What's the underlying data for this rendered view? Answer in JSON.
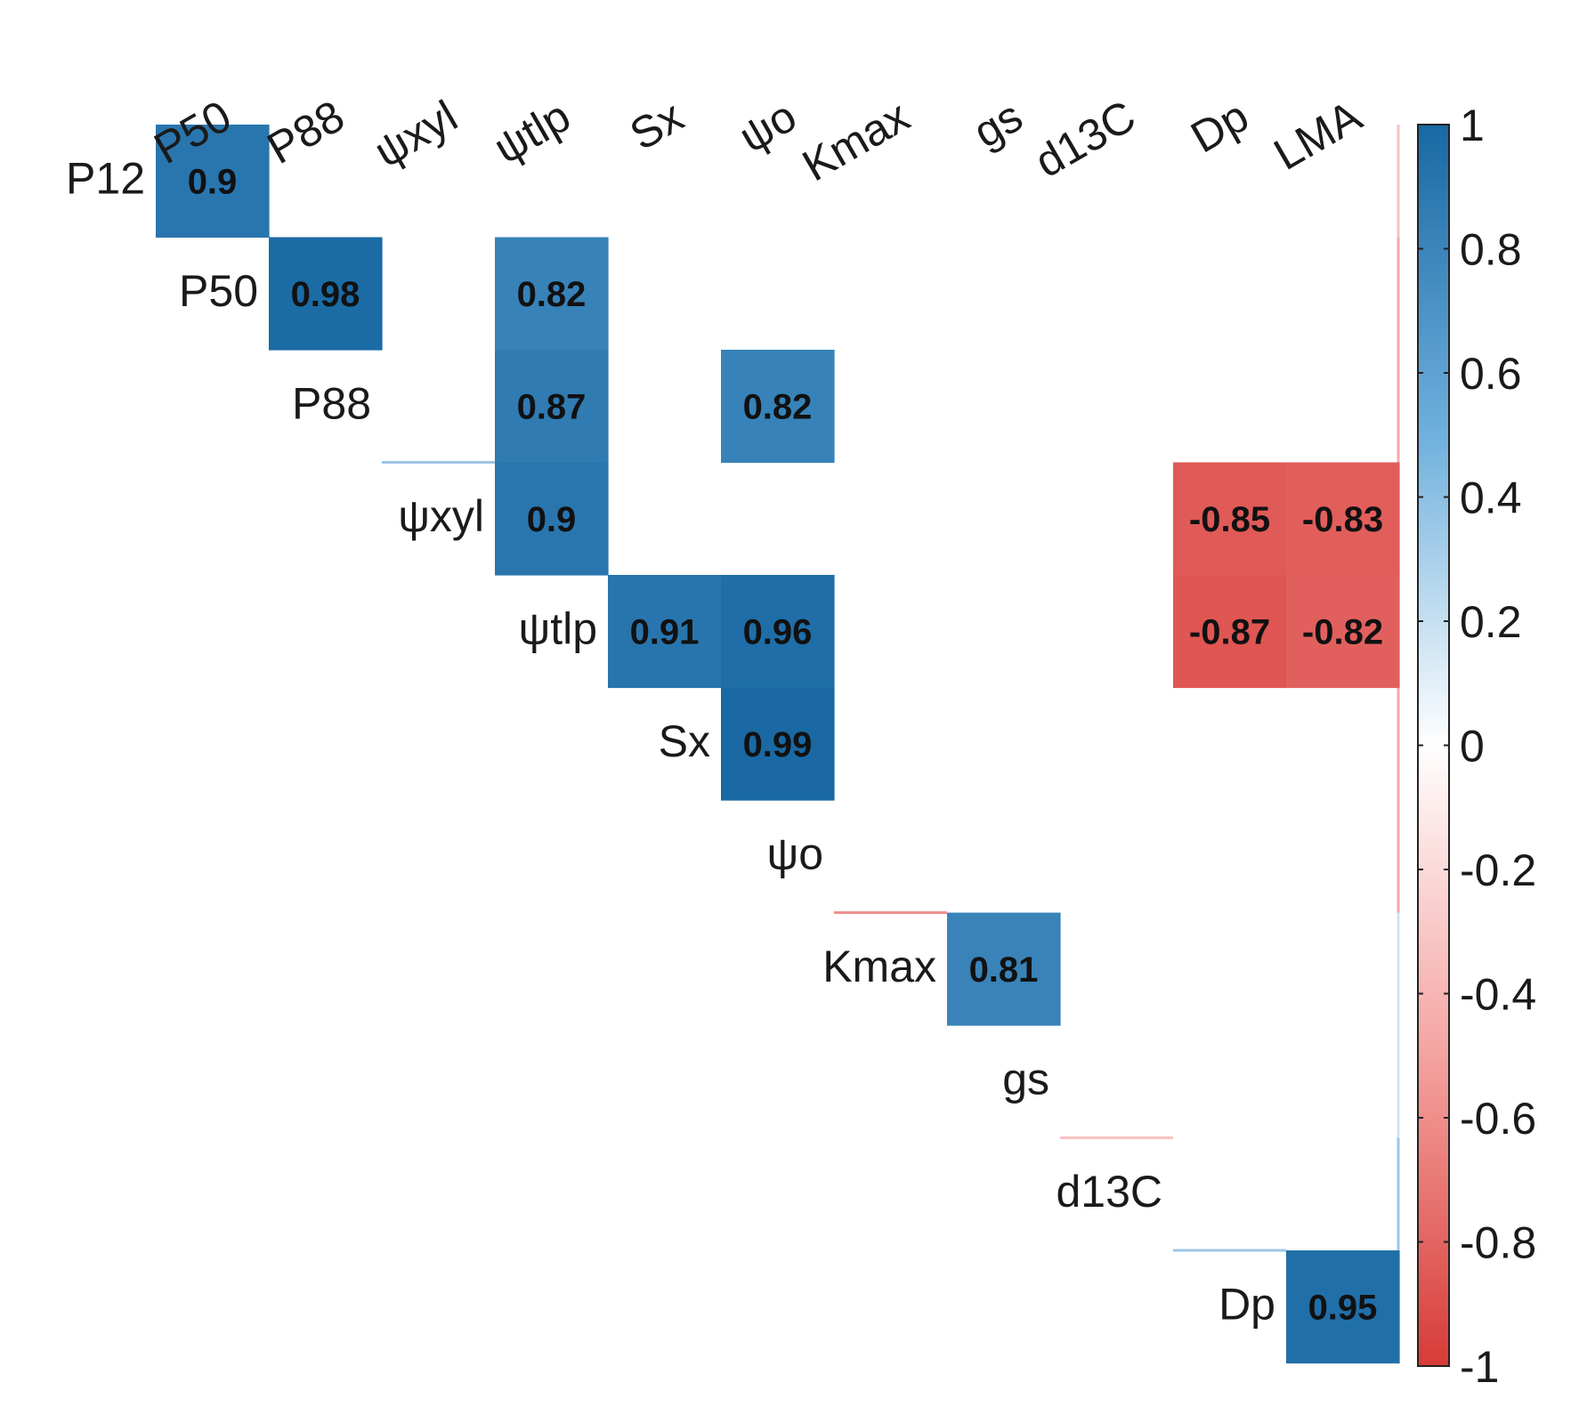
{
  "chart_data": {
    "type": "heatmap",
    "subtype": "upper-triangle correlation matrix (significant |r| > 0.8 labeled)",
    "row_labels": [
      "P12",
      "P50",
      "P88",
      "ψxyl",
      "ψtlp",
      "Sx",
      "ψo",
      "Kmax",
      "gs",
      "d13C",
      "Dp"
    ],
    "column_labels": [
      "P50",
      "P88",
      "ψxyl",
      "ψtlp",
      "Sx",
      "ψo",
      "Kmax",
      "gs",
      "d13C",
      "Dp",
      "LMA"
    ],
    "cells": [
      {
        "row": "P12",
        "col": "P50",
        "value": 0.9,
        "label": "0.9"
      },
      {
        "row": "P50",
        "col": "P88",
        "value": 0.98,
        "label": "0.98"
      },
      {
        "row": "P50",
        "col": "ψtlp",
        "value": 0.82,
        "label": "0.82"
      },
      {
        "row": "P88",
        "col": "ψtlp",
        "value": 0.87,
        "label": "0.87"
      },
      {
        "row": "P88",
        "col": "ψo",
        "value": 0.82,
        "label": "0.82"
      },
      {
        "row": "ψxyl",
        "col": "ψtlp",
        "value": 0.9,
        "label": "0.9"
      },
      {
        "row": "ψxyl",
        "col": "Dp",
        "value": -0.85,
        "label": "-0.85"
      },
      {
        "row": "ψxyl",
        "col": "LMA",
        "value": -0.83,
        "label": "-0.83"
      },
      {
        "row": "ψtlp",
        "col": "Sx",
        "value": 0.91,
        "label": "0.91"
      },
      {
        "row": "ψtlp",
        "col": "ψo",
        "value": 0.96,
        "label": "0.96"
      },
      {
        "row": "ψtlp",
        "col": "Dp",
        "value": -0.87,
        "label": "-0.87"
      },
      {
        "row": "ψtlp",
        "col": "LMA",
        "value": -0.82,
        "label": "-0.82"
      },
      {
        "row": "Sx",
        "col": "ψo",
        "value": 0.99,
        "label": "0.99"
      },
      {
        "row": "Kmax",
        "col": "gs",
        "value": 0.81,
        "label": "0.81"
      },
      {
        "row": "Dp",
        "col": "LMA",
        "value": 0.95,
        "label": "0.95"
      }
    ],
    "colorbar": {
      "range": [
        -1,
        1
      ],
      "ticks": [
        "1",
        "0.8",
        "0.6",
        "0.4",
        "0.2",
        "0",
        "-0.2",
        "-0.4",
        "-0.6",
        "-0.8",
        "-1"
      ],
      "colors": {
        "negative": "#D73B37",
        "mid_negative": "#F4A3A0",
        "zero": "#FFFFFF",
        "mid_positive": "#6FB0DD",
        "positive": "#1868A3"
      },
      "position": "right"
    }
  }
}
